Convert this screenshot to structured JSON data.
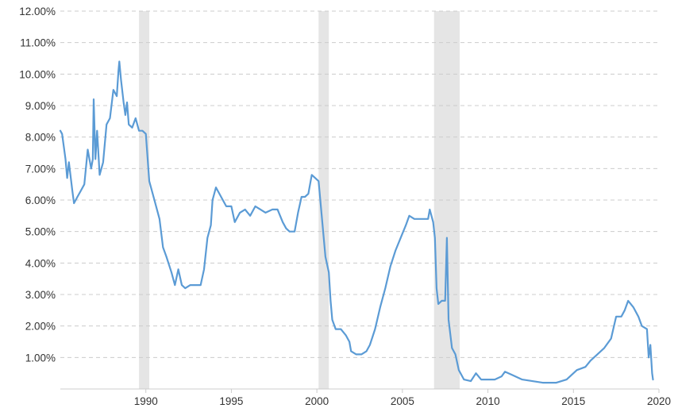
{
  "chart_data": {
    "type": "line",
    "title": "",
    "xlabel": "",
    "ylabel": "",
    "xlim": [
      1985.0,
      2020.0
    ],
    "ylim": [
      0,
      12
    ],
    "grid": true,
    "legend": "none",
    "line_color": "#5b9bd5",
    "band_color": "#e5e5e5",
    "y_ticks": [
      {
        "value": 12,
        "label": "12.00%"
      },
      {
        "value": 11,
        "label": "11.00%"
      },
      {
        "value": 10,
        "label": "10.00%"
      },
      {
        "value": 9,
        "label": "9.00%"
      },
      {
        "value": 8,
        "label": "8.00%"
      },
      {
        "value": 7,
        "label": "7.00%"
      },
      {
        "value": 6,
        "label": "6.00%"
      },
      {
        "value": 5,
        "label": "5.00%"
      },
      {
        "value": 4,
        "label": "4.00%"
      },
      {
        "value": 3,
        "label": "3.00%"
      },
      {
        "value": 2,
        "label": "2.00%"
      },
      {
        "value": 1,
        "label": "1.00%"
      }
    ],
    "x_ticks": [
      {
        "value": 1990,
        "label": "1990"
      },
      {
        "value": 1995,
        "label": "1995"
      },
      {
        "value": 2000,
        "label": "2000"
      },
      {
        "value": 2005,
        "label": "2005"
      },
      {
        "value": 2010,
        "label": "2010"
      },
      {
        "value": 2015,
        "label": "2015"
      },
      {
        "value": 2020,
        "label": "2020"
      }
    ],
    "recession_bands": [
      [
        1989.6,
        1990.2
      ],
      [
        2000.1,
        2000.7
      ],
      [
        2006.85,
        2008.35
      ]
    ],
    "series": [
      {
        "points": [
          [
            1985.0,
            8.2
          ],
          [
            1985.1,
            8.1
          ],
          [
            1985.3,
            7.3
          ],
          [
            1985.4,
            6.7
          ],
          [
            1985.5,
            7.2
          ],
          [
            1985.7,
            6.3
          ],
          [
            1985.8,
            5.9
          ],
          [
            1986.0,
            6.1
          ],
          [
            1986.2,
            6.3
          ],
          [
            1986.4,
            6.5
          ],
          [
            1986.6,
            7.6
          ],
          [
            1986.8,
            7.0
          ],
          [
            1986.9,
            7.3
          ],
          [
            1986.95,
            9.2
          ],
          [
            1987.05,
            7.3
          ],
          [
            1987.15,
            8.2
          ],
          [
            1987.3,
            6.8
          ],
          [
            1987.5,
            7.2
          ],
          [
            1987.7,
            8.4
          ],
          [
            1987.9,
            8.6
          ],
          [
            1988.1,
            9.5
          ],
          [
            1988.3,
            9.3
          ],
          [
            1988.4,
            10.1
          ],
          [
            1988.45,
            10.4
          ],
          [
            1988.55,
            9.8
          ],
          [
            1988.7,
            9.1
          ],
          [
            1988.8,
            8.7
          ],
          [
            1988.9,
            9.1
          ],
          [
            1989.0,
            8.4
          ],
          [
            1989.2,
            8.3
          ],
          [
            1989.4,
            8.6
          ],
          [
            1989.6,
            8.2
          ],
          [
            1989.8,
            8.2
          ],
          [
            1990.0,
            8.1
          ],
          [
            1990.2,
            6.6
          ],
          [
            1990.5,
            6.0
          ],
          [
            1990.8,
            5.4
          ],
          [
            1991.0,
            4.5
          ],
          [
            1991.2,
            4.2
          ],
          [
            1991.5,
            3.7
          ],
          [
            1991.7,
            3.3
          ],
          [
            1991.9,
            3.8
          ],
          [
            1992.1,
            3.3
          ],
          [
            1992.3,
            3.2
          ],
          [
            1992.6,
            3.3
          ],
          [
            1992.9,
            3.3
          ],
          [
            1993.2,
            3.3
          ],
          [
            1993.4,
            3.8
          ],
          [
            1993.6,
            4.8
          ],
          [
            1993.8,
            5.2
          ],
          [
            1993.9,
            6.0
          ],
          [
            1994.1,
            6.4
          ],
          [
            1994.4,
            6.1
          ],
          [
            1994.7,
            5.8
          ],
          [
            1995.0,
            5.8
          ],
          [
            1995.2,
            5.3
          ],
          [
            1995.5,
            5.6
          ],
          [
            1995.8,
            5.7
          ],
          [
            1996.1,
            5.5
          ],
          [
            1996.4,
            5.8
          ],
          [
            1996.7,
            5.7
          ],
          [
            1997.0,
            5.6
          ],
          [
            1997.4,
            5.7
          ],
          [
            1997.7,
            5.7
          ],
          [
            1998.0,
            5.3
          ],
          [
            1998.2,
            5.1
          ],
          [
            1998.4,
            5.0
          ],
          [
            1998.7,
            5.0
          ],
          [
            1998.9,
            5.6
          ],
          [
            1999.1,
            6.1
          ],
          [
            1999.3,
            6.1
          ],
          [
            1999.5,
            6.2
          ],
          [
            1999.7,
            6.8
          ],
          [
            1999.9,
            6.7
          ],
          [
            2000.1,
            6.6
          ],
          [
            2000.3,
            5.4
          ],
          [
            2000.5,
            4.2
          ],
          [
            2000.7,
            3.7
          ],
          [
            2000.8,
            2.8
          ],
          [
            2000.9,
            2.2
          ],
          [
            2001.1,
            1.9
          ],
          [
            2001.4,
            1.9
          ],
          [
            2001.7,
            1.7
          ],
          [
            2001.9,
            1.5
          ],
          [
            2002.0,
            1.2
          ],
          [
            2002.3,
            1.1
          ],
          [
            2002.6,
            1.1
          ],
          [
            2002.9,
            1.2
          ],
          [
            2003.1,
            1.4
          ],
          [
            2003.4,
            1.9
          ],
          [
            2003.7,
            2.6
          ],
          [
            2004.0,
            3.2
          ],
          [
            2004.3,
            3.9
          ],
          [
            2004.6,
            4.4
          ],
          [
            2004.9,
            4.8
          ],
          [
            2005.2,
            5.2
          ],
          [
            2005.4,
            5.5
          ],
          [
            2005.7,
            5.4
          ],
          [
            2006.1,
            5.4
          ],
          [
            2006.5,
            5.4
          ],
          [
            2006.6,
            5.7
          ],
          [
            2006.8,
            5.3
          ],
          [
            2006.9,
            4.8
          ],
          [
            2007.0,
            3.2
          ],
          [
            2007.1,
            2.7
          ],
          [
            2007.3,
            2.8
          ],
          [
            2007.5,
            2.8
          ],
          [
            2007.6,
            4.8
          ],
          [
            2007.7,
            2.2
          ],
          [
            2007.9,
            1.3
          ],
          [
            2008.1,
            1.1
          ],
          [
            2008.3,
            0.6
          ],
          [
            2008.6,
            0.3
          ],
          [
            2009.0,
            0.25
          ],
          [
            2009.3,
            0.5
          ],
          [
            2009.6,
            0.3
          ],
          [
            2010.0,
            0.3
          ],
          [
            2010.4,
            0.3
          ],
          [
            2010.8,
            0.4
          ],
          [
            2011.0,
            0.55
          ],
          [
            2011.4,
            0.45
          ],
          [
            2012.0,
            0.3
          ],
          [
            2012.6,
            0.25
          ],
          [
            2013.2,
            0.2
          ],
          [
            2014.0,
            0.2
          ],
          [
            2014.6,
            0.3
          ],
          [
            2015.2,
            0.6
          ],
          [
            2015.7,
            0.7
          ],
          [
            2016.0,
            0.9
          ],
          [
            2016.4,
            1.1
          ],
          [
            2016.8,
            1.3
          ],
          [
            2017.2,
            1.6
          ],
          [
            2017.5,
            2.3
          ],
          [
            2017.8,
            2.3
          ],
          [
            2018.0,
            2.5
          ],
          [
            2018.2,
            2.8
          ],
          [
            2018.5,
            2.6
          ],
          [
            2018.8,
            2.3
          ],
          [
            2019.0,
            2.0
          ],
          [
            2019.3,
            1.9
          ],
          [
            2019.4,
            1.0
          ],
          [
            2019.5,
            1.4
          ],
          [
            2019.6,
            0.5
          ],
          [
            2019.65,
            0.3
          ]
        ]
      }
    ]
  }
}
